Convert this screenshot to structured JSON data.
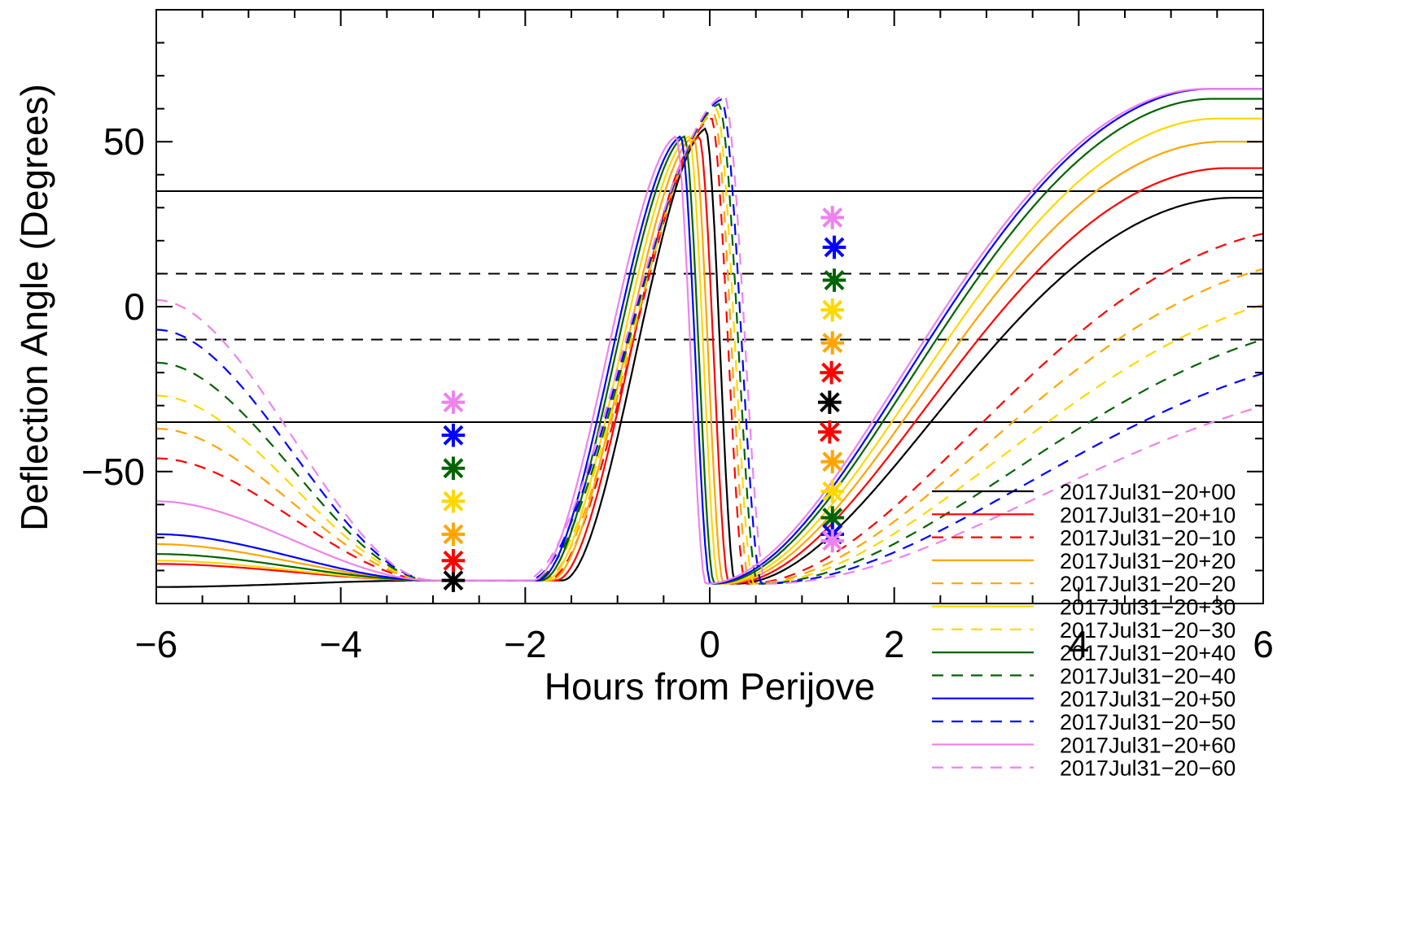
{
  "chart_data": {
    "type": "line",
    "title": "",
    "xlabel": "Hours from Perijove",
    "ylabel": "Deflection Angle (Degrees)",
    "xlim": [
      -6,
      6
    ],
    "ylim": [
      -90,
      90
    ],
    "x_ticks": [
      {
        "value": -6,
        "label": "−6"
      },
      {
        "value": -4,
        "label": "−4"
      },
      {
        "value": -2,
        "label": "−2"
      },
      {
        "value": 0,
        "label": "0"
      },
      {
        "value": 2,
        "label": "2"
      },
      {
        "value": 4,
        "label": "4"
      },
      {
        "value": 6,
        "label": "6"
      }
    ],
    "y_ticks": [
      {
        "value": -50,
        "label": "−50"
      },
      {
        "value": 0,
        "label": "0"
      },
      {
        "value": 50,
        "label": "50"
      }
    ],
    "reference_lines": [
      {
        "y": 35,
        "style": "solid"
      },
      {
        "y": 10,
        "style": "dashed"
      },
      {
        "y": -10,
        "style": "dashed"
      },
      {
        "y": -35,
        "style": "solid"
      }
    ],
    "legend_position": "bottom-right",
    "series": [
      {
        "name": "2017Jul31−20+00",
        "color": "#000000",
        "dash": false,
        "x0": 0.0,
        "pre": -85,
        "tail": 33,
        "amp": 1.0,
        "markers": [
          {
            "x": -2.78,
            "y": -83
          },
          {
            "x": 1.3,
            "y": -29
          }
        ]
      },
      {
        "name": "2017Jul31−20+10",
        "color": "#ff0000",
        "dash": false,
        "x0": -0.07,
        "pre": -78,
        "tail": 42,
        "amp": 1.0,
        "markers": [
          {
            "x": -2.78,
            "y": -77
          },
          {
            "x": 1.32,
            "y": -20
          }
        ]
      },
      {
        "name": "2017Jul31−20−10",
        "color": "#ff0000",
        "dash": true,
        "x0": 0.07,
        "pre": -46,
        "tail": 24,
        "amp": 1.15,
        "markers": [
          {
            "x": 1.3,
            "y": -38
          }
        ]
      },
      {
        "name": "2017Jul31−20+20",
        "color": "#ffa500",
        "dash": false,
        "x0": -0.13,
        "pre": -72,
        "tail": 50,
        "amp": 1.0,
        "markers": [
          {
            "x": -2.78,
            "y": -69
          },
          {
            "x": 1.33,
            "y": -11
          }
        ]
      },
      {
        "name": "2017Jul31−20−20",
        "color": "#ffa500",
        "dash": true,
        "x0": 0.1,
        "pre": -37,
        "tail": 15,
        "amp": 1.2,
        "markers": [
          {
            "x": 1.33,
            "y": -47
          }
        ]
      },
      {
        "name": "2017Jul31−20+30",
        "color": "#ffd700",
        "dash": false,
        "x0": -0.18,
        "pre": -77,
        "tail": 57,
        "amp": 1.0,
        "markers": [
          {
            "x": -2.78,
            "y": -59
          },
          {
            "x": 1.33,
            "y": -1
          }
        ]
      },
      {
        "name": "2017Jul31−20−30",
        "color": "#ffd700",
        "dash": true,
        "x0": 0.13,
        "pre": -27,
        "tail": 6,
        "amp": 1.25,
        "markers": [
          {
            "x": 1.33,
            "y": -56
          }
        ]
      },
      {
        "name": "2017Jul31−20+40",
        "color": "#006400",
        "dash": false,
        "x0": -0.23,
        "pre": -75,
        "tail": 63,
        "amp": 1.0,
        "markers": [
          {
            "x": -2.78,
            "y": -49
          },
          {
            "x": 1.35,
            "y": 8
          }
        ]
      },
      {
        "name": "2017Jul31−20−40",
        "color": "#006400",
        "dash": true,
        "x0": 0.16,
        "pre": -17,
        "tail": -3,
        "amp": 1.3,
        "markers": [
          {
            "x": 1.33,
            "y": -64
          }
        ]
      },
      {
        "name": "2017Jul31−20+50",
        "color": "#0000ff",
        "dash": false,
        "x0": -0.27,
        "pre": -69,
        "tail": 66,
        "amp": 1.0,
        "markers": [
          {
            "x": -2.78,
            "y": -39
          },
          {
            "x": 1.35,
            "y": 18
          }
        ]
      },
      {
        "name": "2017Jul31−20−50",
        "color": "#0000ff",
        "dash": true,
        "x0": 0.19,
        "pre": -7,
        "tail": -12,
        "amp": 1.35,
        "markers": [
          {
            "x": 1.33,
            "y": -69
          }
        ]
      },
      {
        "name": "2017Jul31−20+60",
        "color": "#ee82ee",
        "dash": false,
        "x0": -0.32,
        "pre": -59,
        "tail": 66,
        "amp": 1.0,
        "markers": [
          {
            "x": -2.78,
            "y": -29
          },
          {
            "x": 1.33,
            "y": 27
          }
        ]
      },
      {
        "name": "2017Jul31−20−60",
        "color": "#ee82ee",
        "dash": true,
        "x0": 0.22,
        "pre": 2,
        "tail": -21,
        "amp": 1.4,
        "markers": [
          {
            "x": 1.33,
            "y": -71
          }
        ]
      }
    ]
  }
}
